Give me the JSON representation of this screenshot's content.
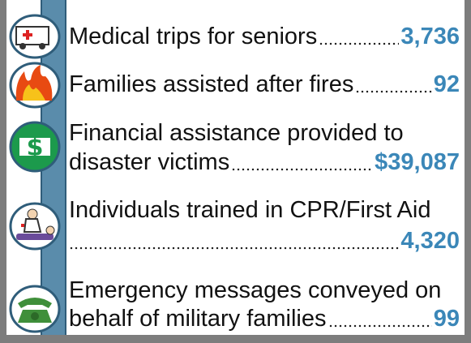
{
  "items": [
    {
      "label": "Medical trips for seniors",
      "value": "3,736"
    },
    {
      "label": "Families assisted after fires",
      "value": "92"
    },
    {
      "label": [
        "Financial assistance provided to",
        "disaster victims"
      ],
      "value": "$39,087"
    },
    {
      "label": [
        "Individuals trained in CPR/First Aid"
      ],
      "value": "4,320"
    },
    {
      "label": [
        "Emergency messages conveyed on",
        "behalf of military families"
      ],
      "value": "99"
    }
  ]
}
